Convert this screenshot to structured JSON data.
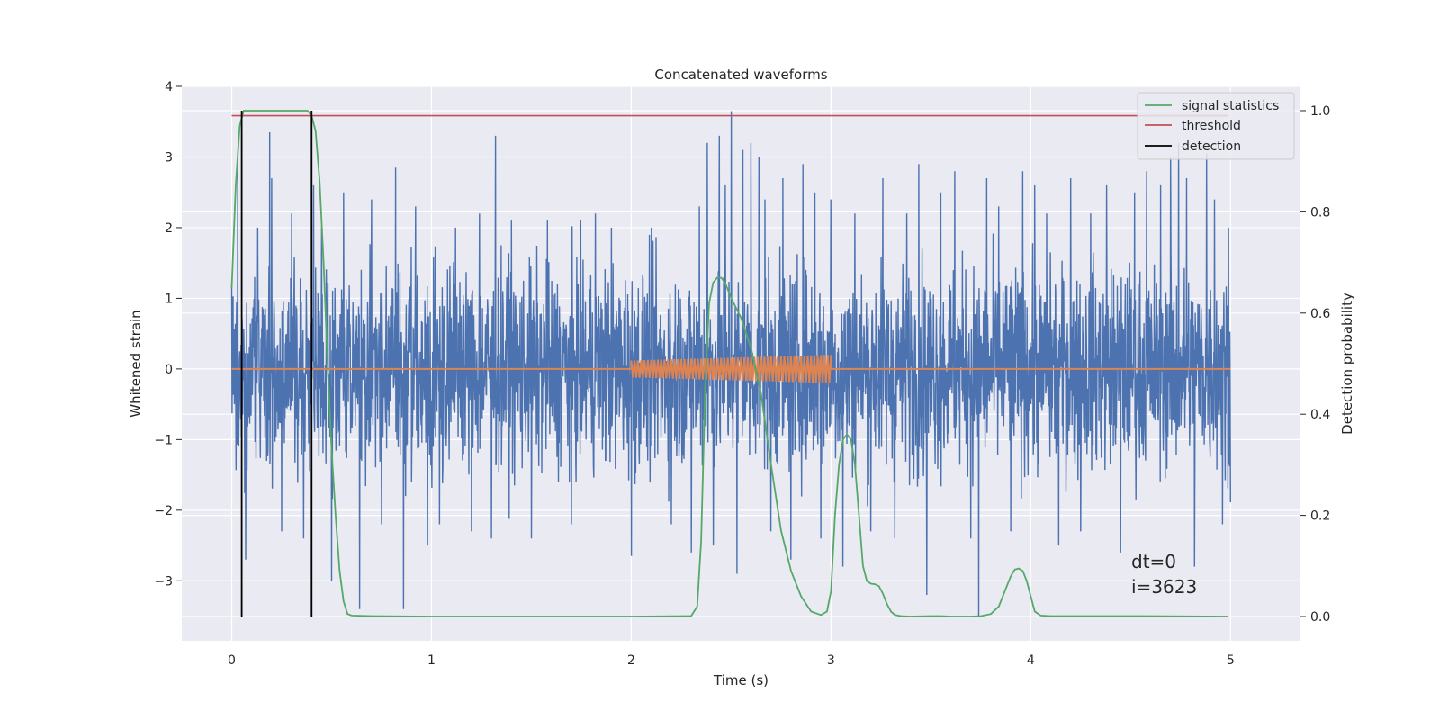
{
  "chart_data": {
    "type": "line",
    "title": "Concatenated waveforms",
    "xlabel": "Time (s)",
    "ylabel": "Whitened strain",
    "y2label": "Detection probability",
    "xlim": [
      -0.25,
      5.35
    ],
    "ylim": [
      -3.85,
      4.0
    ],
    "y2lim": [
      -0.048,
      1.048
    ],
    "xticks": [
      "0",
      "1",
      "2",
      "3",
      "4",
      "5"
    ],
    "yticks": [
      "4",
      "3",
      "2",
      "1",
      "0",
      "−1",
      "−2",
      "−3"
    ],
    "y2ticks": [
      "1.0",
      "0.8",
      "0.6",
      "0.4",
      "0.2",
      "0.0"
    ],
    "grid": true,
    "legend_position": "top-right",
    "legend": [
      {
        "label": "signal statistics",
        "color": "#55a868"
      },
      {
        "label": "threshold",
        "color": "#c44e52"
      },
      {
        "label": "detection",
        "color": "#000000"
      }
    ],
    "annotation": [
      "dt=0",
      "i=3623"
    ],
    "series": [
      {
        "kind": "noise",
        "axis": "left",
        "color": "#4c72b0",
        "x_range": [
          0,
          5
        ],
        "typical_amplitude": 1.3,
        "peaks": [
          [
            0.03,
            3.0
          ],
          [
            0.07,
            -2.7
          ],
          [
            0.13,
            2.0
          ],
          [
            0.19,
            3.35
          ],
          [
            0.2,
            2.7
          ],
          [
            0.25,
            -2.3
          ],
          [
            0.3,
            2.2
          ],
          [
            0.36,
            -2.4
          ],
          [
            0.41,
            2.6
          ],
          [
            0.45,
            2.0
          ],
          [
            0.5,
            -3.0
          ],
          [
            0.56,
            2.5
          ],
          [
            0.64,
            -3.4
          ],
          [
            0.7,
            2.4
          ],
          [
            0.75,
            -2.2
          ],
          [
            0.82,
            2.85
          ],
          [
            0.86,
            -3.4
          ],
          [
            0.92,
            2.3
          ],
          [
            0.98,
            -2.5
          ],
          [
            1.04,
            -2.2
          ],
          [
            1.12,
            2.0
          ],
          [
            1.2,
            -2.3
          ],
          [
            1.24,
            2.2
          ],
          [
            1.3,
            -2.4
          ],
          [
            1.32,
            3.3
          ],
          [
            1.4,
            2.1
          ],
          [
            1.5,
            -2.4
          ],
          [
            1.58,
            2.1
          ],
          [
            1.7,
            -2.2
          ],
          [
            1.82,
            2.2
          ],
          [
            1.9,
            2.0
          ],
          [
            2.0,
            -2.65
          ],
          [
            2.1,
            2.0
          ],
          [
            2.2,
            -2.2
          ],
          [
            2.3,
            -2.6
          ],
          [
            2.34,
            2.3
          ],
          [
            2.38,
            3.2
          ],
          [
            2.41,
            -2.5
          ],
          [
            2.44,
            3.3
          ],
          [
            2.47,
            2.6
          ],
          [
            2.5,
            3.65
          ],
          [
            2.53,
            -2.9
          ],
          [
            2.56,
            3.1
          ],
          [
            2.6,
            3.2
          ],
          [
            2.64,
            3.0
          ],
          [
            2.67,
            2.4
          ],
          [
            2.7,
            -2.3
          ],
          [
            2.76,
            2.7
          ],
          [
            2.8,
            -2.7
          ],
          [
            2.86,
            2.9
          ],
          [
            2.92,
            2.5
          ],
          [
            2.95,
            -2.4
          ],
          [
            3.0,
            2.4
          ],
          [
            3.06,
            -2.8
          ],
          [
            3.12,
            2.2
          ],
          [
            3.2,
            -2.3
          ],
          [
            3.26,
            2.7
          ],
          [
            3.32,
            -2.4
          ],
          [
            3.38,
            2.2
          ],
          [
            3.44,
            2.9
          ],
          [
            3.48,
            -3.2
          ],
          [
            3.55,
            2.5
          ],
          [
            3.62,
            2.8
          ],
          [
            3.7,
            -2.4
          ],
          [
            3.74,
            -3.5
          ],
          [
            3.78,
            2.7
          ],
          [
            3.84,
            2.3
          ],
          [
            3.9,
            -2.3
          ],
          [
            3.96,
            2.8
          ],
          [
            4.02,
            2.6
          ],
          [
            4.08,
            2.2
          ],
          [
            4.14,
            -2.5
          ],
          [
            4.2,
            2.7
          ],
          [
            4.25,
            -2.3
          ],
          [
            4.3,
            2.2
          ],
          [
            4.38,
            2.6
          ],
          [
            4.45,
            -2.6
          ],
          [
            4.52,
            2.5
          ],
          [
            4.58,
            2.8
          ],
          [
            4.65,
            2.6
          ],
          [
            4.7,
            3.0
          ],
          [
            4.74,
            3.2
          ],
          [
            4.78,
            2.7
          ],
          [
            4.82,
            -2.8
          ],
          [
            4.88,
            3.05
          ],
          [
            4.92,
            2.4
          ],
          [
            4.96,
            -2.2
          ],
          [
            4.99,
            2.0
          ]
        ]
      },
      {
        "kind": "chirp",
        "axis": "left",
        "color": "#dd8452",
        "x_range": [
          0,
          5
        ],
        "chirp_start": 2.0,
        "chirp_end": 3.0,
        "amplitude_start": 0.12,
        "amplitude_end": 0.2,
        "cycles": 60
      },
      {
        "name": "signal statistics",
        "axis": "right",
        "color": "#55a868",
        "x": [
          0,
          0.02,
          0.04,
          0.06,
          0.08,
          0.1,
          0.15,
          0.2,
          0.3,
          0.35,
          0.38,
          0.4,
          0.42,
          0.44,
          0.46,
          0.48,
          0.5,
          0.52,
          0.54,
          0.56,
          0.58,
          0.6,
          0.7,
          1.0,
          1.5,
          2.0,
          2.3,
          2.33,
          2.35,
          2.37,
          2.39,
          2.41,
          2.43,
          2.45,
          2.47,
          2.5,
          2.55,
          2.6,
          2.65,
          2.7,
          2.75,
          2.8,
          2.85,
          2.9,
          2.95,
          2.98,
          3.0,
          3.02,
          3.04,
          3.06,
          3.08,
          3.1,
          3.12,
          3.14,
          3.16,
          3.18,
          3.2,
          3.22,
          3.24,
          3.26,
          3.28,
          3.3,
          3.32,
          3.35,
          3.4,
          3.5,
          3.55,
          3.6,
          3.7,
          3.75,
          3.8,
          3.84,
          3.86,
          3.88,
          3.9,
          3.92,
          3.94,
          3.96,
          3.98,
          4.0,
          4.02,
          4.05,
          4.1,
          4.5,
          4.99
        ],
        "values": [
          0.65,
          0.85,
          0.97,
          1.0,
          1.0,
          1.0,
          1.0,
          1.0,
          1.0,
          1.0,
          1.0,
          0.99,
          0.96,
          0.86,
          0.7,
          0.5,
          0.33,
          0.2,
          0.09,
          0.03,
          0.005,
          0.002,
          0.001,
          0.0,
          0.0,
          0.0,
          0.001,
          0.02,
          0.15,
          0.45,
          0.62,
          0.66,
          0.67,
          0.67,
          0.66,
          0.63,
          0.59,
          0.53,
          0.44,
          0.3,
          0.17,
          0.09,
          0.04,
          0.01,
          0.003,
          0.01,
          0.05,
          0.2,
          0.3,
          0.35,
          0.36,
          0.35,
          0.3,
          0.2,
          0.1,
          0.07,
          0.065,
          0.064,
          0.06,
          0.045,
          0.025,
          0.01,
          0.003,
          0.001,
          0.0,
          0.001,
          0.001,
          0.0,
          0.0,
          0.001,
          0.005,
          0.02,
          0.04,
          0.06,
          0.08,
          0.093,
          0.095,
          0.09,
          0.07,
          0.04,
          0.01,
          0.002,
          0.001,
          0.001,
          0.0
        ]
      },
      {
        "name": "threshold",
        "axis": "right",
        "color": "#c44e52",
        "x": [
          0,
          4.99
        ],
        "values": [
          0.99,
          0.99
        ]
      },
      {
        "name": "detection",
        "axis": "right",
        "color": "#000000",
        "kind": "vlines",
        "x": [
          0.05,
          0.4
        ],
        "range": [
          0,
          1
        ]
      }
    ]
  }
}
